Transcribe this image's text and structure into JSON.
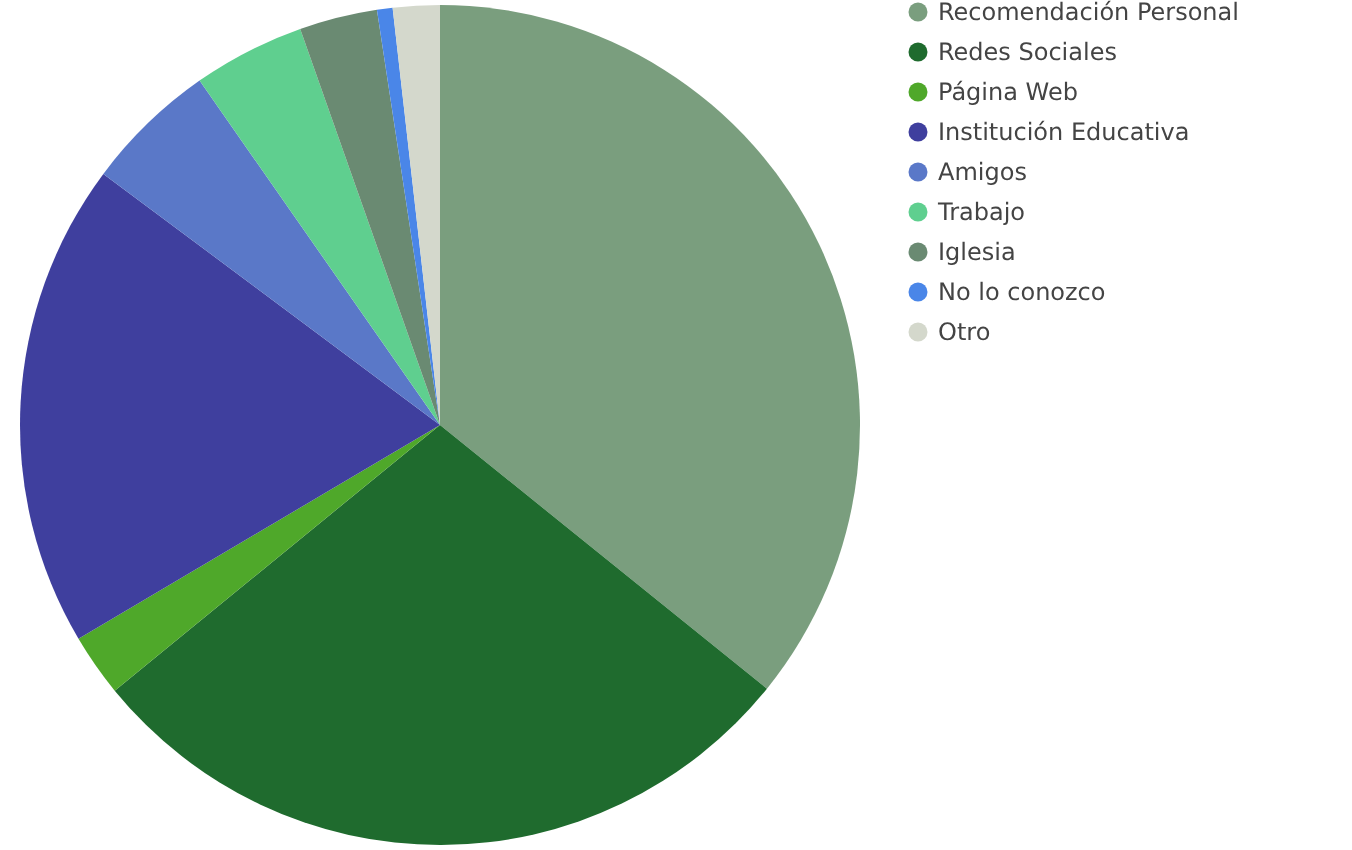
{
  "chart_data": {
    "type": "pie",
    "categories": [
      "Recomendación Personal",
      "Redes Sociales",
      "Página Web",
      "Institución Educativa",
      "Amigos",
      "Trabajo",
      "Iglesia",
      "No lo conozco",
      "Otro"
    ],
    "values": [
      35.8,
      28.3,
      2.4,
      18.7,
      5.1,
      4.3,
      3.0,
      0.6,
      1.8
    ],
    "colors": [
      "#7a9e7e",
      "#1f6b2e",
      "#4fa82a",
      "#3f3f9e",
      "#5a78c8",
      "#5fcf8f",
      "#6a8a72",
      "#4a86e8",
      "#d4d8cc"
    ],
    "legend": "right"
  }
}
